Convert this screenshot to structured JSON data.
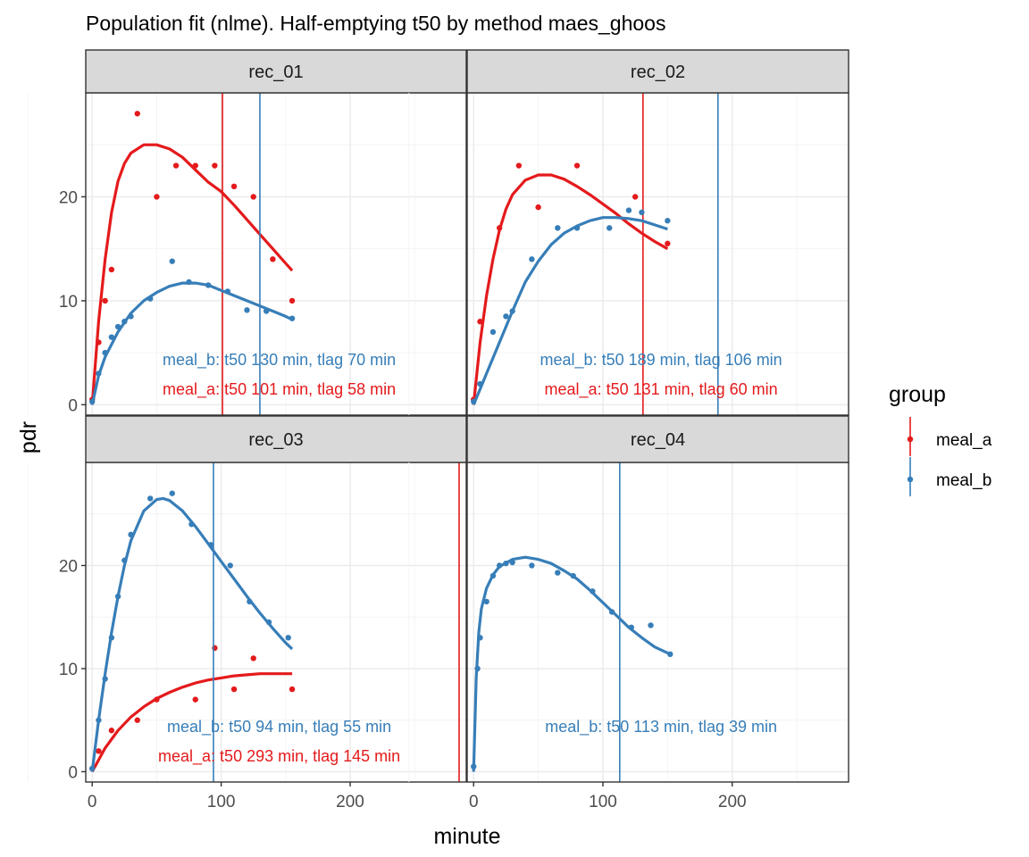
{
  "chart_data": {
    "type": "scatter",
    "title": "Population fit (nlme). Half-emptying t50 by method maes_ghoos",
    "xlabel": "minute",
    "ylabel": "pdr",
    "xlim": [
      -5,
      290
    ],
    "ylim": [
      -1,
      30
    ],
    "x_ticks": [
      0,
      100,
      200
    ],
    "y_ticks": [
      0,
      10,
      20
    ],
    "grid": true,
    "legend": {
      "title": "group",
      "position": "right",
      "entries": [
        {
          "name": "meal_a",
          "color": "#e41a1c"
        },
        {
          "name": "meal_b",
          "color": "#377eb8"
        }
      ]
    },
    "colors": {
      "meal_a": "#e41a1c",
      "meal_b": "#377eb8",
      "panel_border": "#333333",
      "strip_bg": "#d9d9d9",
      "grid": "#ebebeb"
    },
    "panels": [
      {
        "name": "rec_01",
        "series": [
          {
            "name": "meal_a",
            "points": [
              [
                0,
                0.5
              ],
              [
                5,
                6
              ],
              [
                10,
                10
              ],
              [
                15,
                13
              ],
              [
                35,
                28
              ],
              [
                50,
                20
              ],
              [
                65,
                23
              ],
              [
                80,
                23
              ],
              [
                95,
                23
              ],
              [
                110,
                21
              ],
              [
                125,
                20
              ],
              [
                140,
                14
              ],
              [
                155,
                10
              ]
            ],
            "fit": [
              [
                0,
                0
              ],
              [
                5,
                8
              ],
              [
                10,
                14
              ],
              [
                15,
                18.5
              ],
              [
                20,
                21.5
              ],
              [
                25,
                23.2
              ],
              [
                30,
                24.2
              ],
              [
                40,
                25
              ],
              [
                50,
                25
              ],
              [
                60,
                24.6
              ],
              [
                70,
                23.8
              ],
              [
                80,
                22.6
              ],
              [
                90,
                21.4
              ],
              [
                100,
                20.5
              ],
              [
                110,
                19.2
              ],
              [
                120,
                17.8
              ],
              [
                130,
                16.4
              ],
              [
                140,
                15
              ],
              [
                150,
                13.6
              ],
              [
                155,
                12.9
              ]
            ],
            "t50_line": 101,
            "annotation": "meal_a: t50 101 min, tlag 58 min"
          },
          {
            "name": "meal_b",
            "points": [
              [
                0,
                0.3
              ],
              [
                5,
                3
              ],
              [
                10,
                5
              ],
              [
                15,
                6.5
              ],
              [
                20,
                7.5
              ],
              [
                25,
                8
              ],
              [
                30,
                8.5
              ],
              [
                45,
                10.2
              ],
              [
                62,
                13.8
              ],
              [
                75,
                11.8
              ],
              [
                90,
                11.5
              ],
              [
                105,
                10.9
              ],
              [
                120,
                9.1
              ],
              [
                135,
                9
              ],
              [
                155,
                8.3
              ]
            ],
            "fit": [
              [
                0,
                0
              ],
              [
                5,
                2.8
              ],
              [
                10,
                4.6
              ],
              [
                20,
                7
              ],
              [
                30,
                8.8
              ],
              [
                40,
                10
              ],
              [
                50,
                10.8
              ],
              [
                60,
                11.4
              ],
              [
                70,
                11.7
              ],
              [
                80,
                11.7
              ],
              [
                90,
                11.5
              ],
              [
                100,
                11
              ],
              [
                110,
                10.5
              ],
              [
                120,
                10
              ],
              [
                130,
                9.5
              ],
              [
                140,
                9
              ],
              [
                150,
                8.5
              ],
              [
                155,
                8.2
              ]
            ],
            "t50_line": 130,
            "annotation": "meal_b: t50 130 min, tlag 70 min"
          }
        ]
      },
      {
        "name": "rec_02",
        "series": [
          {
            "name": "meal_a",
            "points": [
              [
                0,
                0.5
              ],
              [
                5,
                8
              ],
              [
                20,
                17
              ],
              [
                35,
                23
              ],
              [
                50,
                19
              ],
              [
                80,
                23
              ],
              [
                125,
                20
              ],
              [
                150,
                15.5
              ]
            ],
            "fit": [
              [
                0,
                0
              ],
              [
                5,
                6
              ],
              [
                10,
                10.5
              ],
              [
                15,
                14
              ],
              [
                20,
                16.8
              ],
              [
                25,
                18.8
              ],
              [
                30,
                20.2
              ],
              [
                40,
                21.6
              ],
              [
                50,
                22.1
              ],
              [
                60,
                22.1
              ],
              [
                70,
                21.7
              ],
              [
                80,
                21
              ],
              [
                90,
                20.2
              ],
              [
                100,
                19.3
              ],
              [
                110,
                18.4
              ],
              [
                120,
                17.4
              ],
              [
                130,
                16.5
              ],
              [
                140,
                15.7
              ],
              [
                150,
                15
              ]
            ],
            "t50_line": 131,
            "annotation": "meal_a: t50 131 min, tlag 60 min"
          },
          {
            "name": "meal_b",
            "points": [
              [
                0,
                0.3
              ],
              [
                5,
                2
              ],
              [
                15,
                7
              ],
              [
                25,
                8.5
              ],
              [
                30,
                9
              ],
              [
                45,
                14
              ],
              [
                65,
                17
              ],
              [
                80,
                17
              ],
              [
                105,
                17
              ],
              [
                120,
                18.7
              ],
              [
                130,
                18.5
              ],
              [
                150,
                17.7
              ]
            ],
            "fit": [
              [
                0,
                0
              ],
              [
                5,
                1.5
              ],
              [
                10,
                3
              ],
              [
                20,
                6
              ],
              [
                30,
                9
              ],
              [
                40,
                11.8
              ],
              [
                50,
                13.8
              ],
              [
                60,
                15.4
              ],
              [
                70,
                16.5
              ],
              [
                80,
                17.2
              ],
              [
                90,
                17.7
              ],
              [
                100,
                18
              ],
              [
                110,
                18
              ],
              [
                120,
                17.9
              ],
              [
                130,
                17.7
              ],
              [
                140,
                17.3
              ],
              [
                150,
                16.9
              ]
            ],
            "t50_line": 189,
            "annotation": "meal_b: t50 189 min, tlag 106 min"
          }
        ]
      },
      {
        "name": "rec_03",
        "series": [
          {
            "name": "meal_a",
            "points": [
              [
                0,
                0.3
              ],
              [
                5,
                2
              ],
              [
                15,
                4
              ],
              [
                35,
                5
              ],
              [
                50,
                7
              ],
              [
                80,
                7
              ],
              [
                95,
                12
              ],
              [
                110,
                8
              ],
              [
                125,
                11
              ],
              [
                155,
                8
              ]
            ],
            "fit": [
              [
                0,
                0
              ],
              [
                10,
                2.3
              ],
              [
                20,
                4
              ],
              [
                30,
                5.3
              ],
              [
                40,
                6.3
              ],
              [
                50,
                7.1
              ],
              [
                60,
                7.7
              ],
              [
                70,
                8.2
              ],
              [
                80,
                8.6
              ],
              [
                90,
                8.9
              ],
              [
                100,
                9.1
              ],
              [
                110,
                9.3
              ],
              [
                120,
                9.4
              ],
              [
                130,
                9.5
              ],
              [
                140,
                9.5
              ],
              [
                155,
                9.5
              ]
            ],
            "t50_line": 293,
            "annotation": "meal_a: t50 293 min, tlag 145 min"
          },
          {
            "name": "meal_b",
            "points": [
              [
                0,
                0.3
              ],
              [
                5,
                5
              ],
              [
                10,
                9
              ],
              [
                15,
                13
              ],
              [
                20,
                17
              ],
              [
                25,
                20.5
              ],
              [
                30,
                23
              ],
              [
                45,
                26.5
              ],
              [
                62,
                27
              ],
              [
                77,
                24
              ],
              [
                92,
                22
              ],
              [
                107,
                20
              ],
              [
                122,
                16.5
              ],
              [
                137,
                14.5
              ],
              [
                152,
                13
              ]
            ],
            "fit": [
              [
                0,
                0
              ],
              [
                5,
                5
              ],
              [
                10,
                9.5
              ],
              [
                15,
                13.5
              ],
              [
                20,
                17
              ],
              [
                25,
                20
              ],
              [
                30,
                22.4
              ],
              [
                40,
                25.3
              ],
              [
                50,
                26.4
              ],
              [
                55,
                26.5
              ],
              [
                60,
                26.3
              ],
              [
                70,
                25.3
              ],
              [
                80,
                23.8
              ],
              [
                90,
                22.1
              ],
              [
                100,
                20.4
              ],
              [
                110,
                18.7
              ],
              [
                120,
                17
              ],
              [
                130,
                15.4
              ],
              [
                140,
                13.9
              ],
              [
                150,
                12.5
              ],
              [
                155,
                11.9
              ]
            ],
            "t50_line": 94,
            "annotation": "meal_b: t50 94 min, tlag 55 min"
          }
        ]
      },
      {
        "name": "rec_04",
        "series": [
          {
            "name": "meal_b",
            "points": [
              [
                0,
                0.5
              ],
              [
                3,
                10
              ],
              [
                5,
                13
              ],
              [
                10,
                16.5
              ],
              [
                15,
                19
              ],
              [
                20,
                20
              ],
              [
                25,
                20.2
              ],
              [
                30,
                20.3
              ],
              [
                45,
                20
              ],
              [
                65,
                19.3
              ],
              [
                77,
                19
              ],
              [
                92,
                17.5
              ],
              [
                107,
                15.5
              ],
              [
                122,
                14
              ],
              [
                137,
                14.2
              ],
              [
                152,
                11.4
              ]
            ],
            "fit": [
              [
                0,
                0
              ],
              [
                2,
                9
              ],
              [
                4,
                13.5
              ],
              [
                6,
                15.8
              ],
              [
                10,
                17.8
              ],
              [
                15,
                19.1
              ],
              [
                20,
                19.9
              ],
              [
                30,
                20.6
              ],
              [
                40,
                20.8
              ],
              [
                50,
                20.6
              ],
              [
                60,
                20.2
              ],
              [
                70,
                19.5
              ],
              [
                80,
                18.7
              ],
              [
                90,
                17.6
              ],
              [
                100,
                16.4
              ],
              [
                110,
                15.2
              ],
              [
                120,
                14
              ],
              [
                130,
                13
              ],
              [
                140,
                12.1
              ],
              [
                152,
                11.4
              ]
            ],
            "t50_line": 113,
            "annotation": "meal_b: t50 113 min, tlag 39 min"
          }
        ]
      }
    ]
  }
}
